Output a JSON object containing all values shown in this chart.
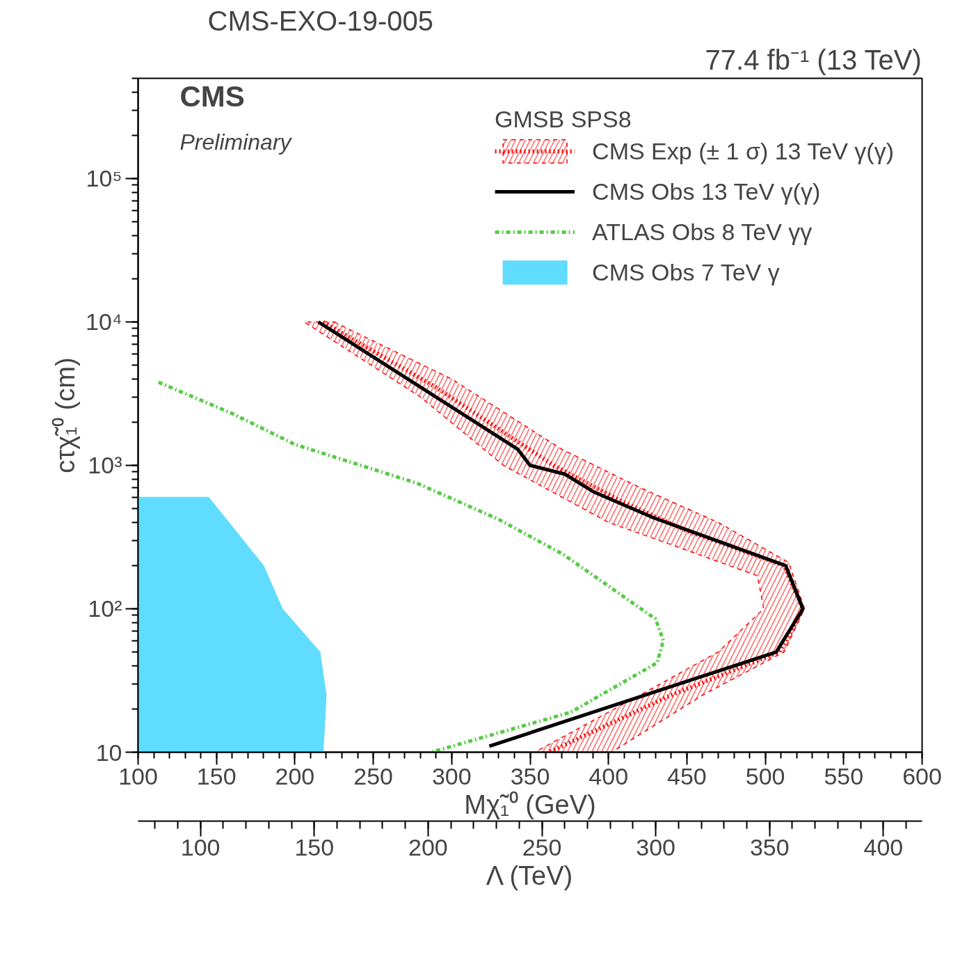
{
  "chart_data": {
    "type": "line",
    "title": "CMS-EXO-19-005",
    "annotations": [
      "77.4 fb⁻¹ (13 TeV)",
      "CMS",
      "Preliminary"
    ],
    "xlabel": "Mχ̃₁⁰ (GeV)",
    "ylabel": "cτχ̃₁⁰ (cm)",
    "x2label": "Λ (TeV)",
    "legend_title": "GMSB SPS8",
    "legend": "top right",
    "log": "y",
    "xlim": [
      100,
      600
    ],
    "xticks": [
      100,
      150,
      200,
      250,
      300,
      350,
      400,
      450,
      500,
      550,
      600
    ],
    "x2lim": [
      72.6,
      417
    ],
    "x2ticks": [
      100,
      150,
      200,
      250,
      300,
      350,
      400
    ],
    "ylim": [
      10,
      500000
    ],
    "yticks": [
      10,
      {
        "value": 100,
        "label": "10²"
      },
      {
        "value": 1000,
        "label": "10³"
      },
      {
        "value": 10000,
        "label": "10⁴"
      },
      {
        "value": 100000,
        "label": "10⁵"
      }
    ],
    "series": [
      {
        "type": "area",
        "color": "#ff0000",
        "line_style": "dashed",
        "x": [
          225,
          300,
          370,
          420,
          470,
          515,
          525,
          512,
          460,
          402,
          353,
          420,
          470,
          499,
          495,
          440,
          400,
          333,
          280,
          206
        ],
        "values": [
          10000,
          4000,
          1300,
          700,
          400,
          210,
          100,
          50,
          25,
          10,
          10,
          25,
          50,
          100,
          170,
          280,
          400,
          1000,
          3000,
          10000
        ]
      },
      {
        "name": "CMS Exp (± 1 σ) 13 TeV γ(γ)",
        "color": "#ff0000",
        "line_style": "dotted",
        "x": [
          218,
          290,
          365,
          410,
          450,
          512,
          524,
          509,
          440,
          362
        ],
        "values": [
          10000,
          3500,
          1000,
          550,
          350,
          200,
          100,
          50,
          25,
          10
        ]
      },
      {
        "name": "CMS Obs 13 TeV γ(γ)",
        "color": "#000000",
        "line_style": "solid",
        "x": [
          215,
          342,
          350,
          372,
          391,
          429,
          513,
          524,
          507,
          324
        ],
        "values": [
          10000,
          1300,
          1000,
          870,
          650,
          430,
          200,
          100,
          50,
          11
        ]
      },
      {
        "name": "ATLAS Obs 8 TeV γγ",
        "color": "#55cc44",
        "line_style": "dashdot",
        "x": [
          113,
          160,
          200,
          278,
          330,
          371,
          430,
          435,
          431,
          376,
          287
        ],
        "values": [
          3800,
          2300,
          1400,
          750,
          420,
          240,
          85,
          60,
          42,
          19,
          10
        ]
      },
      {
        "type": "area",
        "name": "CMS Obs 7 TeV γ",
        "color": "#5fdcff",
        "x": [
          100,
          145,
          180,
          192,
          216,
          220,
          218,
          100
        ],
        "values": [
          600,
          600,
          200,
          100,
          50,
          25,
          10,
          10
        ]
      }
    ]
  }
}
